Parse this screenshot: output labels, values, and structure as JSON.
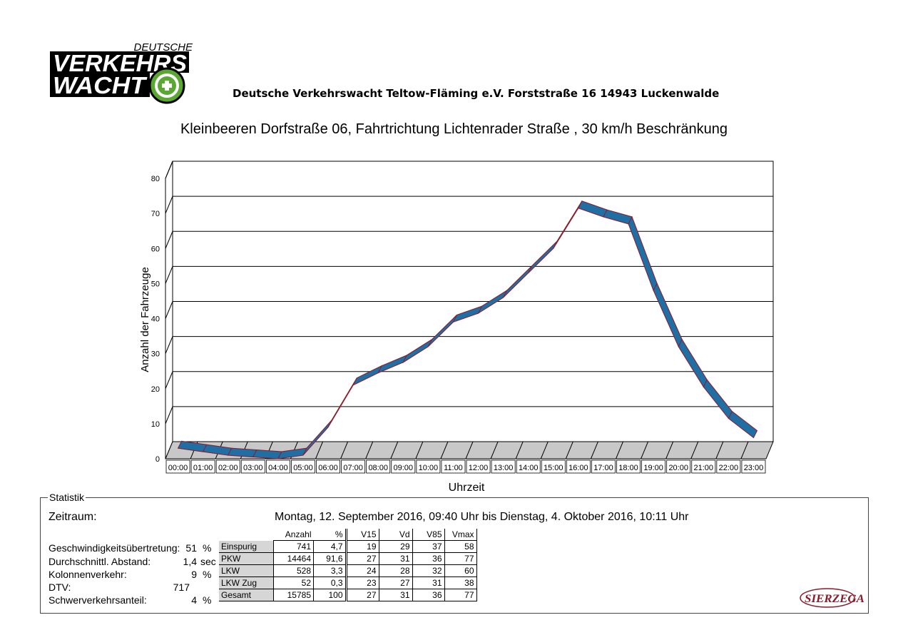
{
  "header": {
    "logo_line1": "DEUTSCHE",
    "logo_line2": "VERKEHRS",
    "logo_line3": "WACHT",
    "org": "Deutsche Verkehrswacht Teltow-Fläming e.V.  Forststraße 16  14943 Luckenwalde"
  },
  "chart_data": {
    "type": "line",
    "title": "Kleinbeeren Dorfstraße 06,  Fahrtrichtung Lichtenrader Straße , 30 km/h Beschränkung",
    "xlabel": "Uhrzeit",
    "ylabel": "Anzahl der Fahrzeuge",
    "ylim": [
      0,
      80
    ],
    "yticks": [
      0,
      10,
      20,
      30,
      40,
      50,
      60,
      70,
      80
    ],
    "grid": true,
    "categories": [
      "00:00",
      "01:00",
      "02:00",
      "03:00",
      "04:00",
      "05:00",
      "06:00",
      "07:00",
      "08:00",
      "09:00",
      "10:00",
      "11:00",
      "12:00",
      "13:00",
      "14:00",
      "15:00",
      "16:00",
      "17:00",
      "18:00",
      "19:00",
      "20:00",
      "21:00",
      "22:00",
      "23:00"
    ],
    "values": [
      3,
      2,
      1,
      0.5,
      0,
      1,
      9,
      21,
      24.5,
      27.5,
      32,
      39,
      41.5,
      46,
      53,
      60,
      71.5,
      69,
      67,
      48,
      32,
      20.5,
      11.5,
      6
    ],
    "color": "#1f6ea4",
    "edge_color": "#8b1a2a"
  },
  "statistik": {
    "legend": "Statistik",
    "zeitraum_label": "Zeitraum:",
    "zeitraum_value": "Montag, 12. September 2016, 09:40 Uhr bis Dienstag, 4. Oktober 2016, 10:11 Uhr",
    "items": [
      {
        "label": "Geschwindigkeitsübertretung:",
        "value": "51",
        "unit": "%"
      },
      {
        "label": "Durchschnittl. Abstand:",
        "value": "1,4",
        "unit": "sec"
      },
      {
        "label": "Kolonnenverkehr:",
        "value": "9",
        "unit": "%"
      },
      {
        "label": "DTV:",
        "value": "717",
        "unit": ""
      },
      {
        "label": "Schwerverkehrsanteil:",
        "value": "4",
        "unit": "%"
      }
    ],
    "table": {
      "headers": [
        "",
        "Anzahl",
        "%",
        "V15",
        "Vd",
        "V85",
        "Vmax"
      ],
      "rows": [
        [
          "Einspurig",
          "741",
          "4,7",
          "19",
          "29",
          "37",
          "58"
        ],
        [
          "PKW",
          "14464",
          "91,6",
          "27",
          "31",
          "36",
          "77"
        ],
        [
          "LKW",
          "528",
          "3,3",
          "24",
          "28",
          "32",
          "60"
        ],
        [
          "LKW Zug",
          "52",
          "0,3",
          "23",
          "27",
          "31",
          "38"
        ],
        [
          "Gesamt",
          "15785",
          "100",
          "27",
          "31",
          "36",
          "77"
        ]
      ]
    }
  },
  "footer": {
    "brand": "SIERZEGA"
  }
}
